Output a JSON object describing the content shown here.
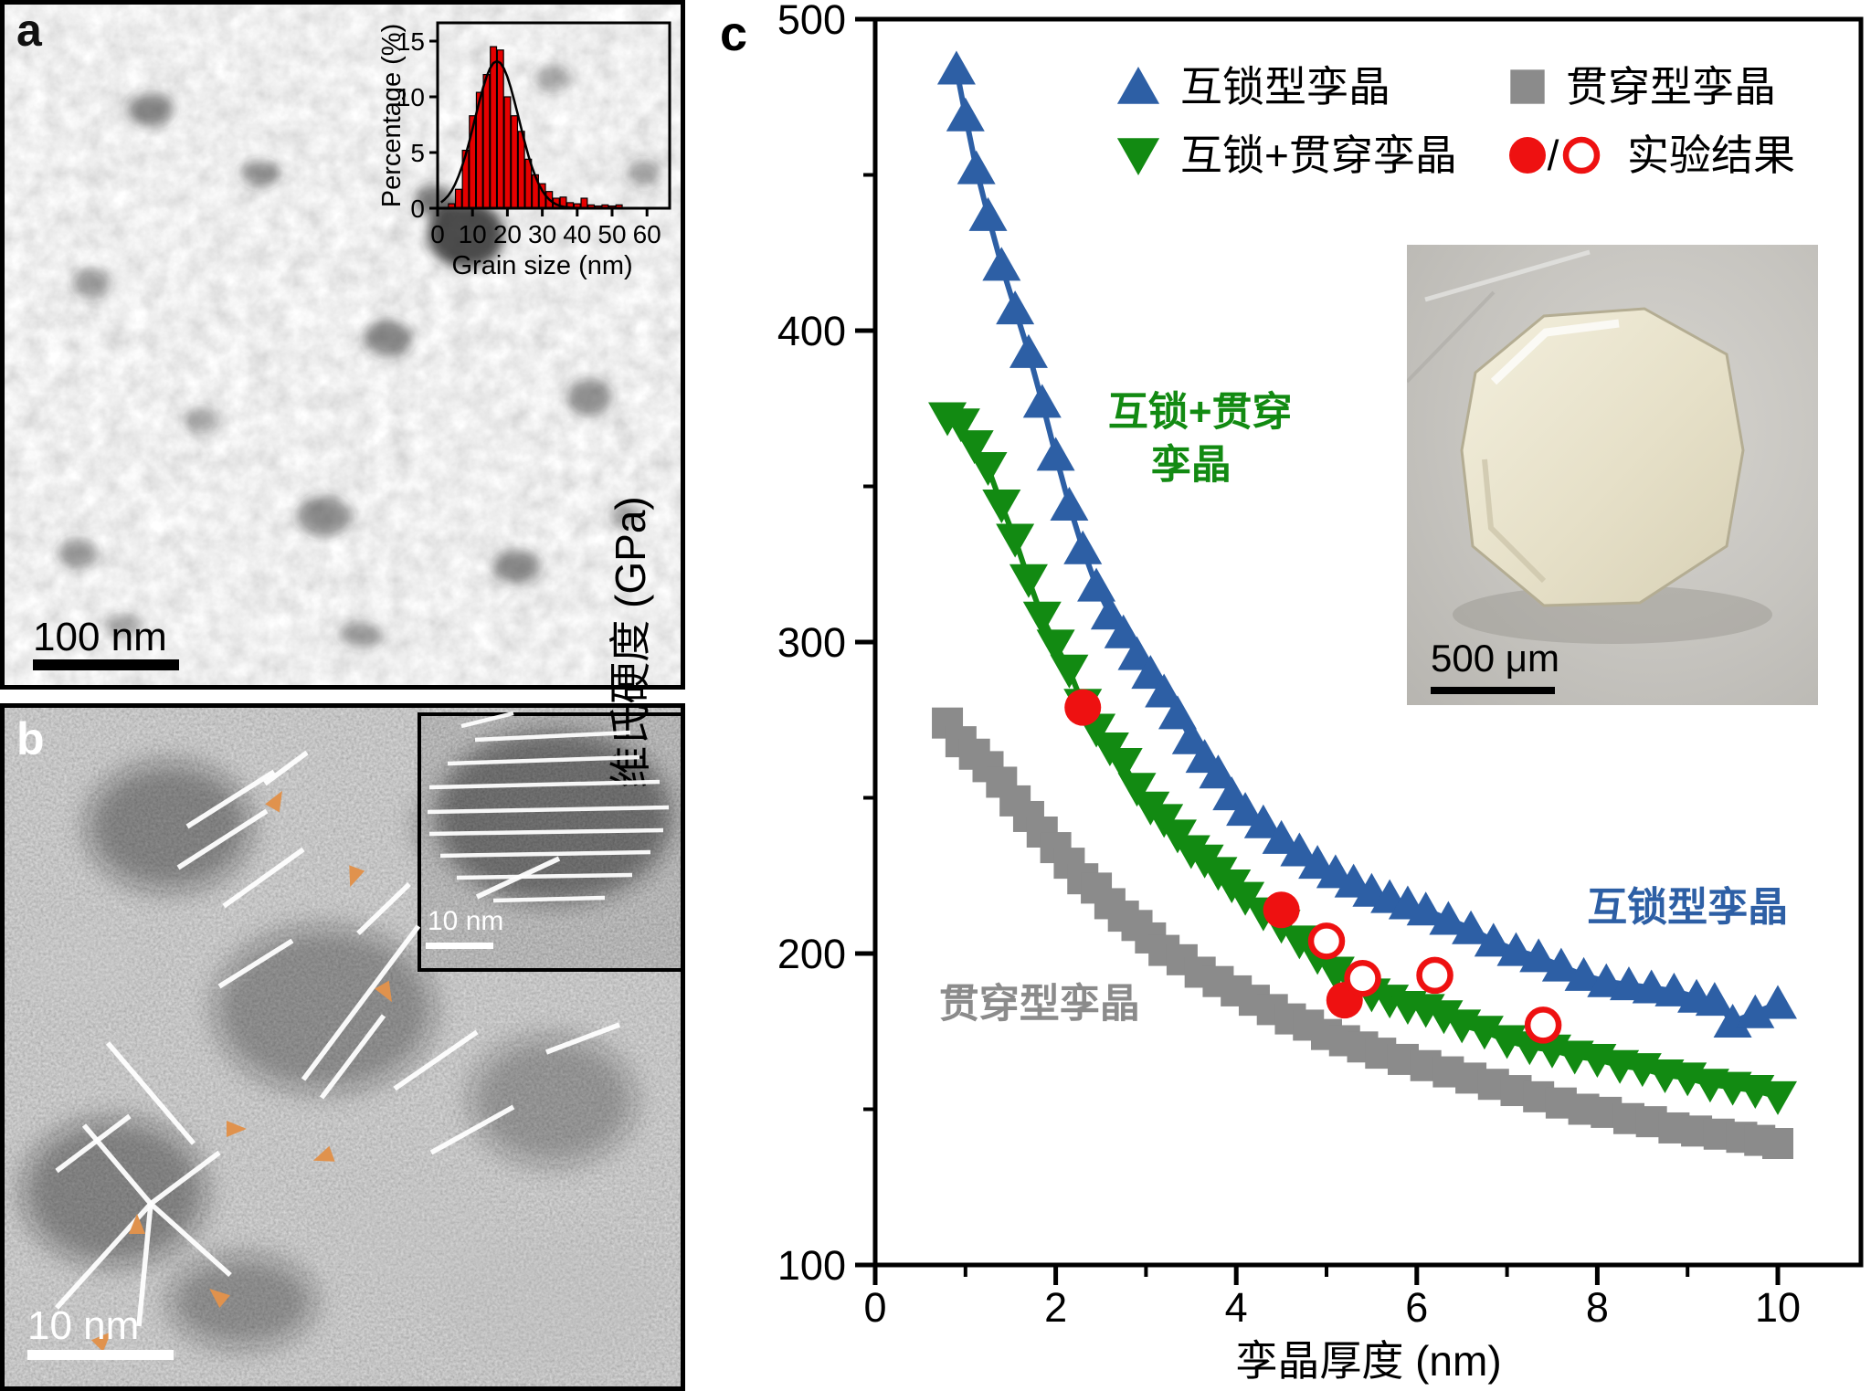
{
  "panels": {
    "a": {
      "label": "a",
      "scalebar": "100 nm"
    },
    "b": {
      "label": "b",
      "scalebar": "10 nm",
      "inset_scalebar": "10 nm"
    },
    "c": {
      "label": "c"
    }
  },
  "sample_photo": {
    "scalebar": "500 μm"
  },
  "legend": [
    {
      "id": "interlocked",
      "marker": "triangle-up",
      "color": "#2d5fa5",
      "label": "互锁型孪晶"
    },
    {
      "id": "interlocked-penetrating",
      "marker": "triangle-down",
      "color": "#128a12",
      "label": "互锁+贯穿孪晶"
    },
    {
      "id": "penetrating",
      "marker": "square",
      "color": "#8b8b8b",
      "label": "贯穿型孪晶"
    },
    {
      "id": "experimental",
      "marker": "circle-pair",
      "color": "#ee1111",
      "label": "实验结果",
      "separator": "/"
    }
  ],
  "chart_data": [
    {
      "id": "hardness-vs-twin-thickness",
      "type": "line",
      "xlabel": "孪晶厚度 (nm)",
      "ylabel": "维氏硬度 (GPa)",
      "xlim": [
        0,
        11
      ],
      "ylim": [
        100,
        500
      ],
      "xticks": [
        0,
        2,
        4,
        6,
        8,
        10
      ],
      "xticks_minor": [
        1,
        3,
        5,
        7,
        9
      ],
      "yticks": [
        100,
        200,
        300,
        400,
        500
      ],
      "yticks_minor": [
        150,
        250,
        350,
        450
      ],
      "grid": false,
      "legend_position": "top-inside",
      "series": [
        {
          "id": "interlocked",
          "name": "互锁型孪晶",
          "marker": "triangle-up",
          "color": "#2d5fa5",
          "linewidth": 6,
          "points": [
            [
              0.9,
              484
            ],
            [
              1.0,
              469
            ],
            [
              1.12,
              452
            ],
            [
              1.25,
              437
            ],
            [
              1.4,
              421
            ],
            [
              1.55,
              407
            ],
            [
              1.7,
              393
            ],
            [
              1.85,
              377
            ],
            [
              2.0,
              360
            ],
            [
              2.15,
              344
            ],
            [
              2.3,
              330
            ],
            [
              2.45,
              318
            ],
            [
              2.6,
              309
            ],
            [
              2.75,
              303
            ],
            [
              2.9,
              296
            ],
            [
              3.05,
              290
            ],
            [
              3.2,
              284
            ],
            [
              3.35,
              277
            ],
            [
              3.5,
              269
            ],
            [
              3.65,
              263
            ],
            [
              3.8,
              258
            ],
            [
              3.95,
              251
            ],
            [
              4.1,
              246
            ],
            [
              4.3,
              242
            ],
            [
              4.5,
              237
            ],
            [
              4.7,
              233
            ],
            [
              4.9,
              229
            ],
            [
              5.1,
              226
            ],
            [
              5.3,
              223
            ],
            [
              5.5,
              220
            ],
            [
              5.7,
              218
            ],
            [
              5.9,
              216
            ],
            [
              6.1,
              214
            ],
            [
              6.35,
              211
            ],
            [
              6.6,
              208
            ],
            [
              6.85,
              204
            ],
            [
              7.1,
              201
            ],
            [
              7.35,
              199
            ],
            [
              7.6,
              196
            ],
            [
              7.85,
              193
            ],
            [
              8.1,
              191
            ],
            [
              8.35,
              190
            ],
            [
              8.6,
              189
            ],
            [
              8.85,
              188
            ],
            [
              9.1,
              186
            ],
            [
              9.3,
              185
            ],
            [
              9.5,
              178
            ],
            [
              9.75,
              181
            ],
            [
              10.0,
              184
            ]
          ]
        },
        {
          "id": "interlocked-penetrating",
          "name": "互锁+贯穿孪晶",
          "marker": "triangle-down",
          "color": "#128a12",
          "linewidth": 6,
          "points": [
            [
              0.8,
              372
            ],
            [
              0.95,
              370
            ],
            [
              1.1,
              363
            ],
            [
              1.25,
              356
            ],
            [
              1.4,
              344
            ],
            [
              1.55,
              333
            ],
            [
              1.7,
              320
            ],
            [
              1.85,
              308
            ],
            [
              2.0,
              299
            ],
            [
              2.15,
              291
            ],
            [
              2.3,
              280
            ],
            [
              2.45,
              272
            ],
            [
              2.6,
              266
            ],
            [
              2.75,
              261
            ],
            [
              2.9,
              253
            ],
            [
              3.05,
              247
            ],
            [
              3.2,
              243
            ],
            [
              3.35,
              238
            ],
            [
              3.5,
              233
            ],
            [
              3.65,
              230
            ],
            [
              3.8,
              226
            ],
            [
              3.95,
              222
            ],
            [
              4.1,
              218
            ],
            [
              4.3,
              213
            ],
            [
              4.5,
              209
            ],
            [
              4.7,
              204
            ],
            [
              4.9,
              199
            ],
            [
              5.1,
              194
            ],
            [
              5.3,
              190
            ],
            [
              5.5,
              187
            ],
            [
              5.7,
              185
            ],
            [
              5.9,
              183
            ],
            [
              6.1,
              182
            ],
            [
              6.3,
              180
            ],
            [
              6.5,
              177
            ],
            [
              6.75,
              175
            ],
            [
              7.0,
              172
            ],
            [
              7.25,
              170
            ],
            [
              7.5,
              169
            ],
            [
              7.75,
              167
            ],
            [
              8.0,
              166
            ],
            [
              8.25,
              164
            ],
            [
              8.5,
              163
            ],
            [
              8.75,
              161
            ],
            [
              9.0,
              160
            ],
            [
              9.25,
              158
            ],
            [
              9.5,
              157
            ],
            [
              9.75,
              156
            ],
            [
              10.0,
              154
            ]
          ]
        },
        {
          "id": "penetrating",
          "name": "贯穿型孪晶",
          "marker": "square",
          "color": "#8b8b8b",
          "linewidth": 4,
          "points": [
            [
              0.8,
              274
            ],
            [
              0.95,
              268
            ],
            [
              1.1,
              264
            ],
            [
              1.25,
              260
            ],
            [
              1.4,
              255
            ],
            [
              1.55,
              249
            ],
            [
              1.7,
              244
            ],
            [
              1.85,
              239
            ],
            [
              2.0,
              234
            ],
            [
              2.15,
              229
            ],
            [
              2.3,
              224
            ],
            [
              2.45,
              221
            ],
            [
              2.6,
              216
            ],
            [
              2.75,
              212
            ],
            [
              2.9,
              209
            ],
            [
              3.05,
              205
            ],
            [
              3.2,
              201
            ],
            [
              3.4,
              198
            ],
            [
              3.6,
              194
            ],
            [
              3.8,
              191
            ],
            [
              4.0,
              188
            ],
            [
              4.2,
              185
            ],
            [
              4.4,
              182
            ],
            [
              4.6,
              179
            ],
            [
              4.8,
              177
            ],
            [
              5.0,
              174
            ],
            [
              5.2,
              172
            ],
            [
              5.4,
              170
            ],
            [
              5.6,
              168
            ],
            [
              5.85,
              166
            ],
            [
              6.1,
              164
            ],
            [
              6.35,
              162
            ],
            [
              6.6,
              160
            ],
            [
              6.85,
              158
            ],
            [
              7.1,
              156
            ],
            [
              7.35,
              154
            ],
            [
              7.6,
              152
            ],
            [
              7.85,
              150
            ],
            [
              8.1,
              149
            ],
            [
              8.35,
              147
            ],
            [
              8.6,
              146
            ],
            [
              8.85,
              144
            ],
            [
              9.1,
              143
            ],
            [
              9.35,
              142
            ],
            [
              9.6,
              141
            ],
            [
              9.8,
              140
            ],
            [
              10.0,
              139
            ]
          ]
        },
        {
          "id": "experimental-solid",
          "name": "实验结果(实心)",
          "marker": "circle-filled",
          "color": "#ee1111",
          "linewidth": 0,
          "points": [
            [
              2.3,
              279
            ],
            [
              4.5,
              214
            ],
            [
              5.2,
              185
            ]
          ]
        },
        {
          "id": "experimental-open",
          "name": "实验结果(空心)",
          "marker": "circle-open",
          "color": "#ee1111",
          "linewidth": 0,
          "points": [
            [
              5.0,
              204
            ],
            [
              5.4,
              192
            ],
            [
              6.2,
              193
            ],
            [
              7.4,
              177
            ]
          ]
        }
      ],
      "annotations": [
        {
          "text": "互锁+贯穿",
          "x": 3.6,
          "y": 374,
          "color": "#128a12"
        },
        {
          "text": "孪晶",
          "x": 3.5,
          "y": 357,
          "color": "#128a12"
        },
        {
          "text": "互锁型孪晶",
          "x": 9.0,
          "y": 215,
          "color": "#2d5fa5"
        },
        {
          "text": "贯穿型孪晶",
          "x": 1.82,
          "y": 184,
          "color": "#8b8b8b"
        }
      ]
    },
    {
      "id": "grain-size-histogram",
      "type": "bar",
      "xlabel": "Grain size (nm)",
      "ylabel": "Percentage (%)",
      "xlim": [
        0,
        66
      ],
      "ylim": [
        0,
        16.6
      ],
      "xticks": [
        0,
        10,
        20,
        30,
        40,
        50,
        60
      ],
      "yticks": [
        0,
        5,
        10,
        15
      ],
      "bin_width": 2,
      "bar_color": "#e60000",
      "centers": [
        4,
        6,
        8,
        10,
        12,
        14,
        16,
        18,
        20,
        22,
        24,
        26,
        28,
        30,
        32,
        34,
        36,
        38,
        40,
        42,
        44,
        46,
        48,
        50,
        52
      ],
      "values": [
        0.4,
        1.7,
        5.2,
        8.3,
        10.4,
        12.0,
        14.5,
        14.2,
        10.0,
        8.3,
        6.9,
        4.4,
        3.0,
        2.2,
        1.5,
        0.9,
        1.0,
        0.5,
        0.4,
        0.9,
        0.3,
        0.2,
        0.3,
        0.2,
        0.3
      ],
      "fit_curve": {
        "shape": "gaussian",
        "amplitude": 13.2,
        "center": 17,
        "sigma": 6.3
      }
    }
  ]
}
